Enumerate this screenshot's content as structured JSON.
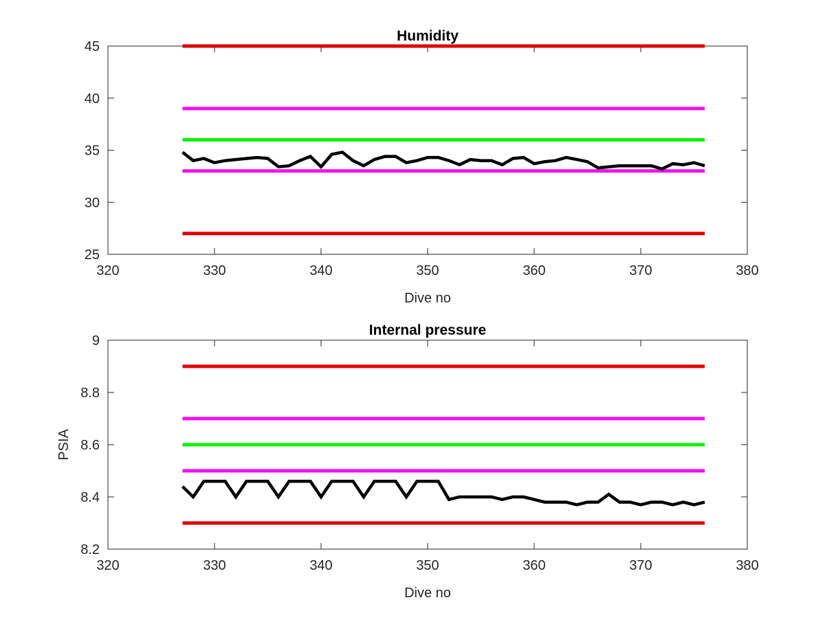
{
  "chart_data": [
    {
      "type": "line",
      "title": "Humidity",
      "xlabel": "Dive no",
      "ylabel": "",
      "xlim": [
        320,
        380
      ],
      "ylim": [
        25,
        45
      ],
      "xticks": [
        320,
        330,
        340,
        350,
        360,
        370,
        380
      ],
      "yticks": [
        25,
        30,
        35,
        40,
        45
      ],
      "grid": false,
      "limit_lines": [
        {
          "name": "upper-red",
          "color": "#dd0000",
          "y": 45,
          "x": [
            327,
            376
          ]
        },
        {
          "name": "upper-magenta",
          "color": "#ee11ee",
          "y": 39,
          "x": [
            327,
            376
          ]
        },
        {
          "name": "green",
          "color": "#11ee11",
          "y": 36,
          "x": [
            327,
            376
          ]
        },
        {
          "name": "lower-magenta",
          "color": "#ee11ee",
          "y": 33,
          "x": [
            327,
            376
          ]
        },
        {
          "name": "lower-red",
          "color": "#dd0000",
          "y": 27,
          "x": [
            327,
            376
          ]
        }
      ],
      "series": [
        {
          "color": "#000000",
          "x": [
            327,
            328,
            329,
            330,
            331,
            332,
            333,
            334,
            335,
            336,
            337,
            338,
            339,
            340,
            341,
            342,
            343,
            344,
            345,
            346,
            347,
            348,
            349,
            350,
            351,
            352,
            353,
            354,
            355,
            356,
            357,
            358,
            359,
            360,
            361,
            362,
            363,
            364,
            365,
            366,
            367,
            368,
            369,
            370,
            371,
            372,
            373,
            374,
            375,
            376
          ],
          "y": [
            34.8,
            34.0,
            34.2,
            33.8,
            34.0,
            34.1,
            34.2,
            34.3,
            34.2,
            33.4,
            33.5,
            34.0,
            34.4,
            33.4,
            34.6,
            34.8,
            34.0,
            33.5,
            34.1,
            34.4,
            34.4,
            33.8,
            34.0,
            34.3,
            34.3,
            34.0,
            33.6,
            34.1,
            34.0,
            34.0,
            33.6,
            34.2,
            34.3,
            33.7,
            33.9,
            34.0,
            34.3,
            34.1,
            33.9,
            33.3,
            33.4,
            33.5,
            33.5,
            33.5,
            33.5,
            33.2,
            33.7,
            33.6,
            33.8,
            33.5
          ]
        }
      ]
    },
    {
      "type": "line",
      "title": "Internal pressure",
      "xlabel": "Dive no",
      "ylabel": "PSIA",
      "xlim": [
        320,
        380
      ],
      "ylim": [
        8.2,
        9
      ],
      "xticks": [
        320,
        330,
        340,
        350,
        360,
        370,
        380
      ],
      "yticks": [
        "8.2",
        "8.4",
        "8.6",
        "8.8",
        "9"
      ],
      "grid": false,
      "limit_lines": [
        {
          "name": "upper-red",
          "color": "#dd0000",
          "y": 8.9,
          "x": [
            327,
            376
          ]
        },
        {
          "name": "upper-magenta",
          "color": "#ee11ee",
          "y": 8.7,
          "x": [
            327,
            376
          ]
        },
        {
          "name": "green",
          "color": "#11ee11",
          "y": 8.6,
          "x": [
            327,
            376
          ]
        },
        {
          "name": "lower-magenta",
          "color": "#ee11ee",
          "y": 8.5,
          "x": [
            327,
            376
          ]
        },
        {
          "name": "lower-red",
          "color": "#dd0000",
          "y": 8.3,
          "x": [
            327,
            376
          ]
        }
      ],
      "series": [
        {
          "color": "#000000",
          "x": [
            327,
            328,
            329,
            330,
            331,
            332,
            333,
            334,
            335,
            336,
            337,
            338,
            339,
            340,
            341,
            342,
            343,
            344,
            345,
            346,
            347,
            348,
            349,
            350,
            351,
            352,
            353,
            354,
            355,
            356,
            357,
            358,
            359,
            360,
            361,
            362,
            363,
            364,
            365,
            366,
            367,
            368,
            369,
            370,
            371,
            372,
            373,
            374,
            375,
            376
          ],
          "y": [
            8.44,
            8.4,
            8.46,
            8.46,
            8.46,
            8.4,
            8.46,
            8.46,
            8.46,
            8.4,
            8.46,
            8.46,
            8.46,
            8.4,
            8.46,
            8.46,
            8.46,
            8.4,
            8.46,
            8.46,
            8.46,
            8.4,
            8.46,
            8.46,
            8.46,
            8.39,
            8.4,
            8.4,
            8.4,
            8.4,
            8.39,
            8.4,
            8.4,
            8.39,
            8.38,
            8.38,
            8.38,
            8.37,
            8.38,
            8.38,
            8.41,
            8.38,
            8.38,
            8.37,
            8.38,
            8.38,
            8.37,
            8.38,
            8.37,
            8.38
          ]
        }
      ]
    }
  ]
}
